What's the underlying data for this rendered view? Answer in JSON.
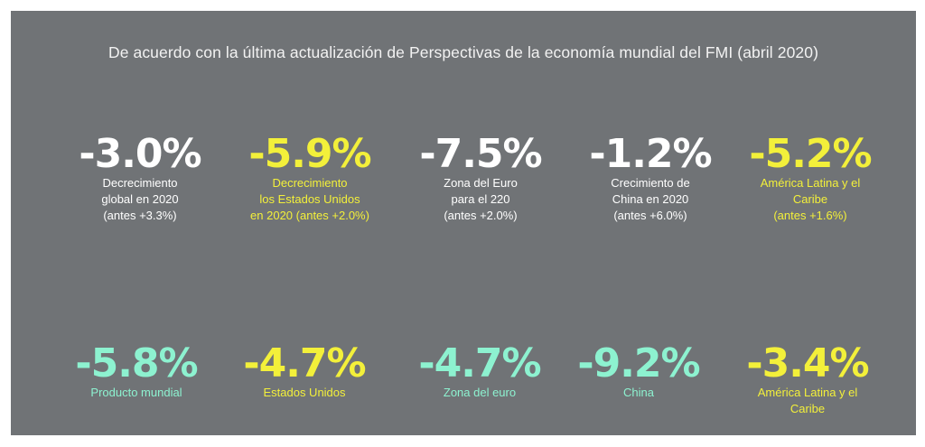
{
  "headline": "De acuerdo con la última actualización de Perspectivas de la economía mundial del FMI (abril 2020)",
  "colors": {
    "background": "#707376",
    "white": "#ffffff",
    "yellow": "#f3f03a",
    "teal": "#8df2d0"
  },
  "row1": [
    {
      "value": "-3.0%",
      "desc": "Decrecimiento\nglobal en 2020\n(antes +3.3%)",
      "color": "white"
    },
    {
      "value": "-5.9%",
      "desc": "Decrecimiento\nlos Estados Unidos\nen 2020 (antes +2.0%)",
      "color": "yellow"
    },
    {
      "value": "-7.5%",
      "desc": "Zona del Euro\npara el 220\n(antes +2.0%)",
      "color": "white"
    },
    {
      "value": "-1.2%",
      "desc": "Crecimiento de\nChina en 2020\n(antes +6.0%)",
      "color": "white"
    },
    {
      "value": "-5.2%",
      "desc": "América Latina y el\nCaribe\n(antes +1.6%)",
      "color": "yellow"
    }
  ],
  "row2": [
    {
      "value": "-5.8%",
      "desc": "Producto mundial",
      "color": "teal"
    },
    {
      "value": "-4.7%",
      "desc": "Estados Unidos",
      "color": "yellow"
    },
    {
      "value": "-4.7%",
      "desc": "Zona del euro",
      "color": "teal"
    },
    {
      "value": "-9.2%",
      "desc": "China",
      "color": "teal"
    },
    {
      "value": "-3.4%",
      "desc": "América Latina y el\nCaribe",
      "color": "yellow"
    }
  ]
}
